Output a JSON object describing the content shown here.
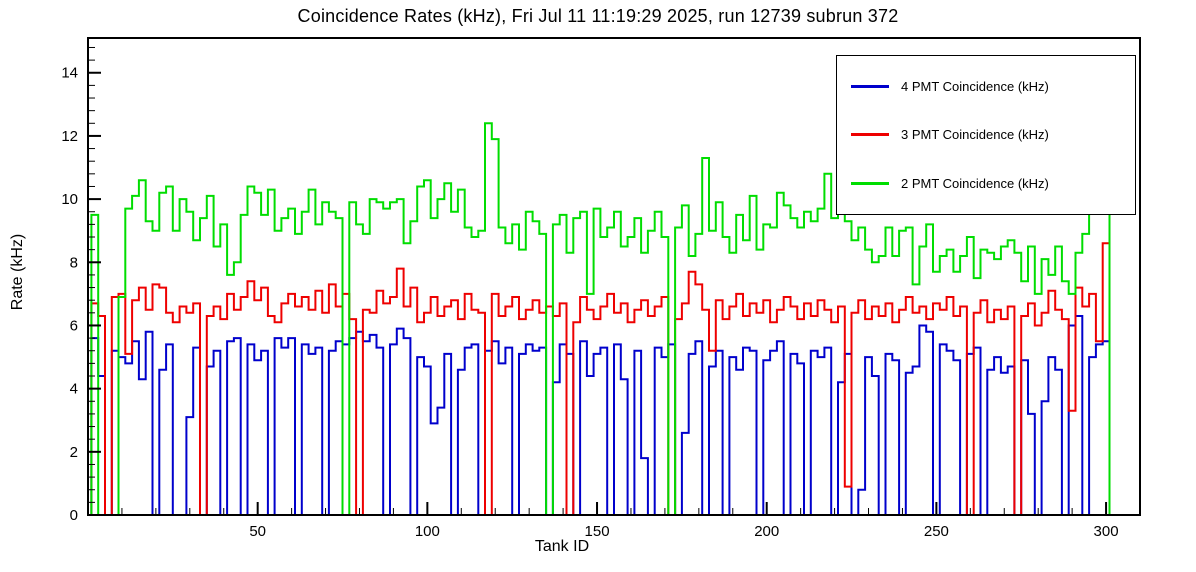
{
  "title": "Coincidence Rates (kHz), Fri Jul 11 11:19:29 2025, run 12739 subrun 372",
  "chart_data": {
    "type": "line",
    "variant": "step-histogram",
    "title": "Coincidence Rates (kHz), Fri Jul 11 11:19:29 2025, run 12739 subrun 372",
    "xlabel": "Tank ID",
    "ylabel": "Rate (kHz)",
    "xlim": [
      0,
      310
    ],
    "ylim": [
      0,
      15.1
    ],
    "x_ticks": [
      50,
      100,
      150,
      200,
      250,
      300
    ],
    "y_ticks": [
      0,
      2,
      4,
      6,
      8,
      10,
      12,
      14
    ],
    "x_minor_step": 10,
    "y_minor_step": 0.4,
    "bin_start": 1,
    "bin_width": 2,
    "grid": false,
    "legend_position": "top-right",
    "frame_color": "#000000",
    "background_color": "#ffffff",
    "series": [
      {
        "name": "4 PMT Coincidence (kHz)",
        "color": "#0000cc",
        "values": [
          5.6,
          4.4,
          0,
          5.2,
          5.0,
          4.8,
          5.5,
          4.3,
          5.8,
          0,
          4.6,
          5.4,
          0,
          0,
          3.1,
          5.3,
          0,
          4.7,
          5.2,
          0,
          5.5,
          5.6,
          0,
          5.4,
          4.9,
          5.2,
          0,
          5.6,
          5.3,
          5.6,
          0,
          5.4,
          5.1,
          5.3,
          0,
          5.2,
          5.5,
          5.4,
          5.6,
          5.8,
          5.5,
          5.7,
          5.3,
          0,
          5.4,
          5.9,
          5.6,
          0,
          5.0,
          4.7,
          2.9,
          3.4,
          5.1,
          0,
          4.6,
          5.3,
          5.4,
          0,
          5.2,
          5.5,
          4.8,
          5.3,
          0,
          5.1,
          5.4,
          5.2,
          5.3,
          0,
          4.2,
          5.4,
          5.1,
          0,
          5.5,
          4.4,
          5.1,
          5.3,
          0,
          5.4,
          4.3,
          0,
          5.2,
          1.8,
          0,
          5.3,
          5.0,
          5.4,
          0,
          2.6,
          5.1,
          5.5,
          0,
          4.7,
          5.2,
          0,
          5.0,
          4.6,
          5.3,
          5.2,
          0,
          4.9,
          5.2,
          5.5,
          0,
          5.1,
          4.8,
          0,
          5.2,
          5.0,
          5.3,
          0,
          4.2,
          5.1,
          0,
          0.8,
          5.0,
          4.4,
          0,
          5.1,
          4.9,
          0,
          4.5,
          4.7,
          6.0,
          5.8,
          0,
          5.4,
          5.2,
          4.9,
          0,
          5.1,
          5.3,
          0,
          4.6,
          5.0,
          4.5,
          4.7,
          0,
          4.9,
          3.2,
          0,
          3.6,
          5.0,
          4.6,
          0,
          6.0,
          6.3,
          0,
          5.0,
          5.4,
          5.5,
          0
        ]
      },
      {
        "name": "3 PMT Coincidence (kHz)",
        "color": "#ee0000",
        "values": [
          6.7,
          6.3,
          0,
          6.9,
          7.0,
          5.1,
          6.8,
          7.2,
          6.5,
          7.3,
          7.2,
          6.4,
          6.1,
          6.6,
          6.4,
          6.7,
          0,
          6.3,
          6.6,
          6.2,
          7.0,
          6.5,
          6.9,
          7.4,
          6.8,
          7.2,
          6.3,
          6.1,
          6.7,
          7.0,
          6.6,
          6.9,
          6.5,
          7.1,
          6.4,
          7.3,
          6.6,
          7.0,
          6.2,
          0,
          6.5,
          6.4,
          7.1,
          6.7,
          6.9,
          7.8,
          6.6,
          7.2,
          6.1,
          6.4,
          6.9,
          6.3,
          6.6,
          6.8,
          6.2,
          7.0,
          6.5,
          6.4,
          0,
          7.0,
          6.3,
          6.6,
          6.9,
          6.2,
          6.5,
          6.8,
          6.4,
          6.6,
          6.3,
          6.7,
          0,
          6.1,
          6.9,
          6.5,
          6.2,
          6.6,
          7.0,
          6.4,
          6.7,
          6.1,
          6.5,
          6.8,
          6.3,
          6.6,
          6.9,
          0,
          6.2,
          6.7,
          7.7,
          7.3,
          6.5,
          5.2,
          6.8,
          6.2,
          6.6,
          7.0,
          6.3,
          6.7,
          6.4,
          6.8,
          6.1,
          6.5,
          6.9,
          6.6,
          6.2,
          6.7,
          6.3,
          6.8,
          6.5,
          6.1,
          6.6,
          0.9,
          6.4,
          6.8,
          6.2,
          6.6,
          6.3,
          6.7,
          6.1,
          6.5,
          6.9,
          6.4,
          6.6,
          6.2,
          6.7,
          6.5,
          6.9,
          6.3,
          6.6,
          0,
          6.4,
          6.8,
          6.1,
          6.5,
          6.2,
          6.6,
          0,
          6.3,
          6.7,
          6.0,
          6.4,
          7.1,
          6.5,
          6.2,
          3.3,
          7.2,
          6.6,
          7.0,
          5.5,
          8.6,
          0
        ]
      },
      {
        "name": "2 PMT Coincidence (kHz)",
        "color": "#00dd00",
        "values": [
          9.5,
          0,
          0,
          0,
          6.9,
          9.7,
          10.1,
          10.6,
          9.3,
          9.0,
          10.2,
          10.4,
          9.0,
          10.0,
          9.6,
          8.7,
          9.4,
          10.1,
          8.5,
          9.2,
          7.6,
          8.0,
          9.5,
          10.4,
          10.2,
          9.5,
          10.3,
          9.0,
          9.4,
          9.7,
          8.9,
          9.6,
          10.3,
          9.2,
          9.9,
          9.6,
          9.4,
          0,
          9.9,
          9.2,
          8.9,
          10.0,
          9.9,
          9.7,
          9.9,
          10.0,
          8.6,
          9.3,
          10.4,
          10.6,
          9.4,
          10.0,
          10.5,
          9.6,
          10.3,
          9.1,
          8.8,
          9.0,
          12.4,
          11.9,
          9.1,
          8.6,
          9.2,
          8.4,
          9.6,
          9.3,
          8.9,
          0,
          9.2,
          9.5,
          8.3,
          9.4,
          9.6,
          7.0,
          9.7,
          8.8,
          9.1,
          9.6,
          8.5,
          8.8,
          9.4,
          8.3,
          9.0,
          9.6,
          8.8,
          0,
          9.1,
          9.8,
          8.2,
          8.9,
          11.3,
          9.0,
          9.9,
          8.8,
          8.3,
          9.5,
          8.7,
          10.1,
          8.4,
          9.2,
          9.1,
          10.2,
          9.8,
          9.4,
          9.1,
          9.6,
          9.3,
          9.7,
          10.8,
          9.4,
          9.8,
          9.3,
          8.7,
          9.1,
          8.4,
          8.0,
          8.2,
          9.1,
          8.2,
          9.0,
          9.1,
          7.3,
          8.5,
          9.2,
          7.7,
          8.2,
          8.4,
          7.7,
          8.2,
          8.8,
          7.5,
          8.4,
          8.3,
          8.1,
          8.5,
          8.7,
          8.3,
          7.4,
          8.5,
          7.0,
          8.1,
          7.6,
          8.5,
          7.4,
          7.0,
          8.3,
          8.9,
          9.7,
          10.3,
          11.1,
          0
        ]
      }
    ]
  }
}
